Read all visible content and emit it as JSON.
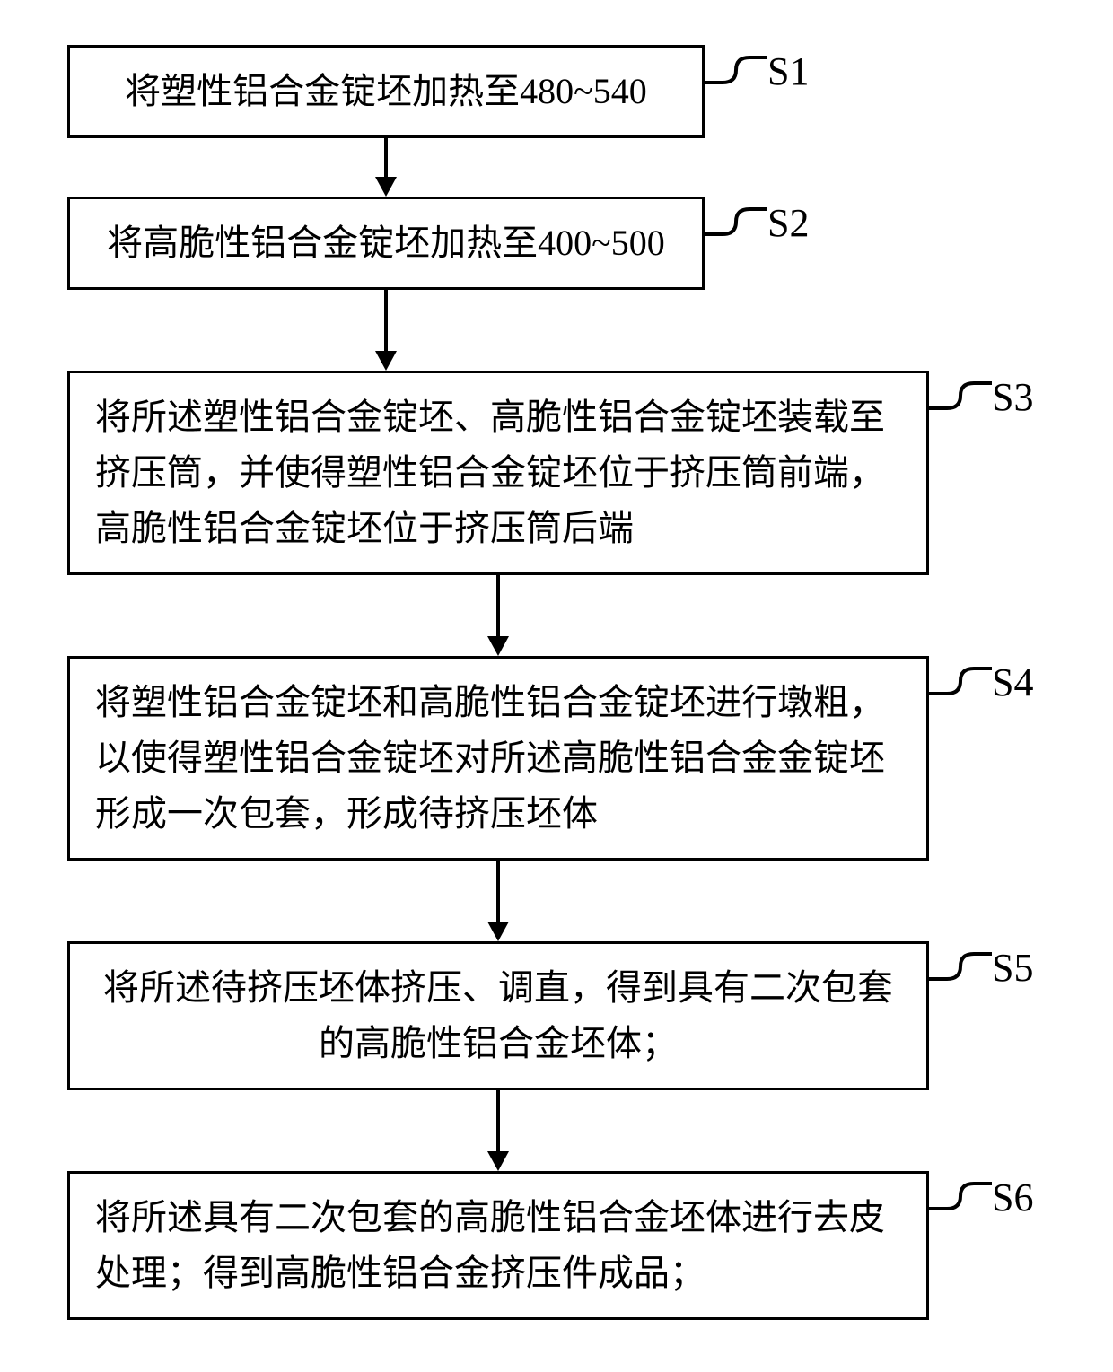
{
  "diagram": {
    "type": "flowchart",
    "background_color": "#ffffff",
    "stroke_color": "#000000",
    "text_color": "#000000",
    "box_border_width": 3,
    "font_size": 40,
    "label_font_size": 44,
    "arrow_height": 60,
    "layout": {
      "total_width": 1240,
      "total_height": 1529,
      "left_margin": 75,
      "box_narrow_width": 710,
      "box_wide_width": 960
    },
    "steps": [
      {
        "id": "S1",
        "label": "S1",
        "text": "将塑性铝合金锭坯加热至480~540",
        "width": "narrow",
        "align": "center",
        "lines": 1,
        "arrow_after": true,
        "arrow_height": 65
      },
      {
        "id": "S2",
        "label": "S2",
        "text": "将高脆性铝合金锭坯加热至400~500",
        "width": "narrow",
        "align": "center",
        "lines": 1,
        "arrow_after": true,
        "arrow_height": 90
      },
      {
        "id": "S3",
        "label": "S3",
        "text": "将所述塑性铝合金锭坯、高脆性铝合金锭坯装载至挤压筒，并使得塑性铝合金锭坯位于挤压筒前端，高脆性铝合金锭坯位于挤压筒后端",
        "width": "wide",
        "align": "left",
        "lines": 3,
        "arrow_after": true,
        "arrow_height": 90
      },
      {
        "id": "S4",
        "label": "S4",
        "text": "将塑性铝合金锭坯和高脆性铝合金锭坯进行墩粗，以使得塑性铝合金锭坯对所述高脆性铝合金金锭坯形成一次包套，形成待挤压坯体",
        "width": "wide",
        "align": "left",
        "lines": 3,
        "arrow_after": true,
        "arrow_height": 90
      },
      {
        "id": "S5",
        "label": "S5",
        "text": "将所述待挤压坯体挤压、调直，得到具有二次包套的高脆性铝合金坯体；",
        "width": "wide-center",
        "align": "center",
        "lines": 2,
        "arrow_after": true,
        "arrow_height": 90
      },
      {
        "id": "S6",
        "label": "S6",
        "text": "将所述具有二次包套的高脆性铝合金坯体进行去皮处理；得到高脆性铝合金挤压件成品；",
        "width": "wide",
        "align": "left",
        "lines": 2,
        "arrow_after": false
      }
    ]
  }
}
